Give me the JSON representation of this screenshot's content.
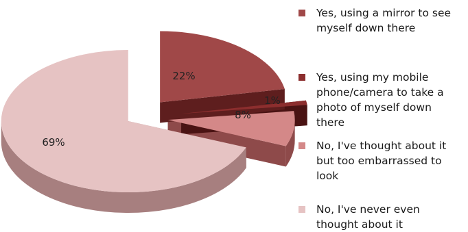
{
  "chart_data": {
    "type": "pie",
    "title": "",
    "three_d": true,
    "exploded": true,
    "legend_position": "right",
    "slices": [
      {
        "label": "Yes, using a mirror to see myself down there",
        "lines": [
          "Yes, using a mirror to see",
          "myself down there"
        ],
        "value": 22,
        "data_label": "22%",
        "color": "#a04848",
        "side_color": "#5e1e1e"
      },
      {
        "label": "Yes, using my mobile phone/camera to take a photo of myself down there",
        "lines": [
          "Yes, using my mobile",
          "phone/camera to take a",
          "photo of myself down",
          "there"
        ],
        "value": 1,
        "data_label": "1%",
        "color": "#8c2e2e",
        "side_color": "#4a1313"
      },
      {
        "label": "No, I've thought about it but too embarrassed to look",
        "lines": [
          "No, I've thought about it",
          "but too embarrassed to",
          "look"
        ],
        "value": 8,
        "data_label": "8%",
        "color": "#d48888",
        "side_color": "#8e4a4a"
      },
      {
        "label": "No, I've never even thought about it",
        "lines": [
          "No, I've never even",
          "thought about it"
        ],
        "value": 69,
        "data_label": "69%",
        "color": "#e6c3c3",
        "side_color": "#a77f7f"
      }
    ]
  }
}
